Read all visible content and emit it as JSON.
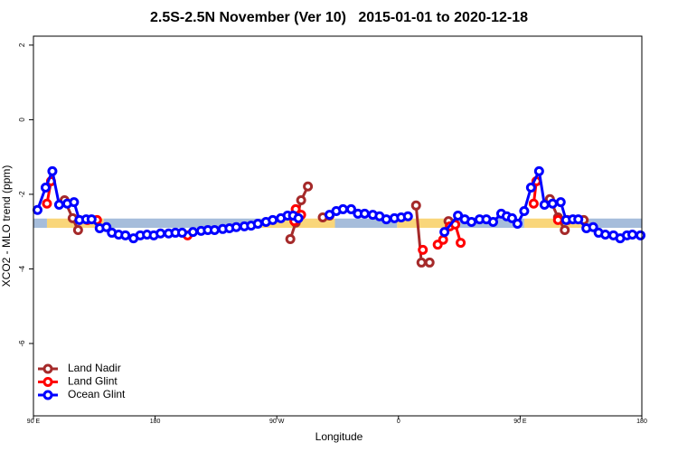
{
  "chart_data": {
    "type": "line",
    "title": "2.5S-2.5N November (Ver 10)   2015-01-01 to 2020-12-18",
    "xlabel": "Longitude",
    "ylabel": "XCO2 - MLO trend (ppm)",
    "xlim": [
      90,
      540
    ],
    "ylim": [
      -7.94,
      2.24
    ],
    "xticks": [
      {
        "value": 90,
        "label": "90 E"
      },
      180,
      {
        "value": 270,
        "label": "90 W"
      },
      {
        "value": 360,
        "label": "0"
      },
      {
        "value": 450,
        "label": "90 E"
      },
      {
        "value": 540,
        "label": "180"
      }
    ],
    "yticks": [
      2,
      0,
      -2,
      -4,
      -6
    ],
    "legend": "bottomleft",
    "band": {
      "low": -2.9,
      "high": -2.65,
      "segments": [
        {
          "xlim": [
            90,
            100
          ],
          "color": "#a6bddb"
        },
        {
          "xlim": [
            100,
            142
          ],
          "color": "#f9d67a"
        },
        {
          "xlim": [
            142,
            259
          ],
          "color": "#a6bddb"
        },
        {
          "xlim": [
            259,
            313
          ],
          "color": "#f9d67a"
        },
        {
          "xlim": [
            313,
            359
          ],
          "color": "#a6bddb"
        },
        {
          "xlim": [
            359,
            400
          ],
          "color": "#f9d67a"
        },
        {
          "xlim": [
            400,
            453
          ],
          "color": "#a6bddb"
        },
        {
          "xlim": [
            453,
            500
          ],
          "color": "#f9d67a"
        },
        {
          "xlim": [
            500,
            540
          ],
          "color": "#a6bddb"
        }
      ]
    },
    "series": [
      {
        "name": "Land Nadir",
        "color": "#a52a2a",
        "x": [
          113,
          119,
          123,
          200,
          280,
          284,
          288,
          293,
          300,
          304,
          309,
          340,
          373,
          377,
          383,
          390,
          397,
          430,
          472,
          478,
          483,
          490,
          497
        ],
        "values": [
          -2.16,
          -2.64,
          -2.96,
          null,
          -3.2,
          -2.76,
          -2.16,
          -1.79,
          null,
          -2.62,
          -2.57,
          null,
          -2.3,
          -3.83,
          -3.83,
          null,
          -2.72,
          null,
          -2.13,
          -2.62,
          -2.96,
          null,
          -2.69
        ]
      },
      {
        "name": "Land Glint",
        "color": "#ff0000",
        "x": [
          100,
          103,
          115,
          130,
          137,
          170,
          204,
          250,
          283,
          284,
          288,
          330,
          378,
          385,
          389,
          393,
          398,
          402,
          406,
          430,
          460,
          462,
          470,
          478,
          485
        ],
        "values": [
          -2.25,
          -1.65,
          null,
          -2.69,
          -2.69,
          null,
          -3.1,
          null,
          -2.72,
          -2.4,
          -2.55,
          null,
          -3.49,
          null,
          -3.35,
          -3.22,
          -2.86,
          -2.81,
          -3.3,
          null,
          -2.25,
          -1.65,
          null,
          -2.69,
          -2.69
        ]
      },
      {
        "name": "Ocean Glint",
        "color": "#0000ff",
        "x": [
          93,
          99,
          104,
          109,
          115,
          120,
          124,
          129,
          133,
          139,
          144,
          148,
          153,
          158,
          164,
          169,
          174,
          179,
          184,
          190,
          195,
          200,
          208,
          214,
          219,
          224,
          230,
          235,
          240,
          246,
          251,
          256,
          262,
          267,
          273,
          278,
          282,
          286,
          295,
          309,
          314,
          319,
          325,
          330,
          335,
          341,
          346,
          351,
          357,
          362,
          367,
          380,
          394,
          404,
          409,
          414,
          420,
          425,
          430,
          436,
          440,
          444,
          448,
          453,
          458,
          464,
          468,
          474,
          480,
          484,
          489,
          493,
          499,
          504,
          508,
          513,
          519,
          524,
          529,
          533,
          539
        ],
        "values": [
          -2.42,
          -1.82,
          -1.38,
          -2.28,
          -2.25,
          -2.21,
          -2.69,
          -2.67,
          -2.67,
          -2.91,
          -2.88,
          -3.03,
          -3.08,
          -3.1,
          -3.18,
          -3.1,
          -3.08,
          -3.1,
          -3.05,
          -3.05,
          -3.03,
          -3.03,
          -3.01,
          -2.98,
          -2.96,
          -2.96,
          -2.93,
          -2.91,
          -2.88,
          -2.86,
          -2.84,
          -2.79,
          -2.74,
          -2.69,
          -2.64,
          -2.57,
          -2.57,
          -2.64,
          null,
          -2.55,
          -2.45,
          -2.4,
          -2.4,
          -2.52,
          -2.52,
          -2.55,
          -2.59,
          -2.67,
          -2.64,
          -2.62,
          -2.59,
          null,
          -3.01,
          -2.57,
          -2.67,
          -2.74,
          -2.67,
          -2.67,
          -2.74,
          -2.52,
          -2.59,
          -2.64,
          -2.79,
          -2.45,
          -1.82,
          -1.38,
          -2.28,
          -2.25,
          -2.21,
          -2.69,
          -2.67,
          -2.67,
          -2.91,
          -2.88,
          -3.03,
          -3.08,
          -3.1,
          -3.18,
          -3.1,
          -3.08,
          -3.1
        ]
      }
    ]
  }
}
